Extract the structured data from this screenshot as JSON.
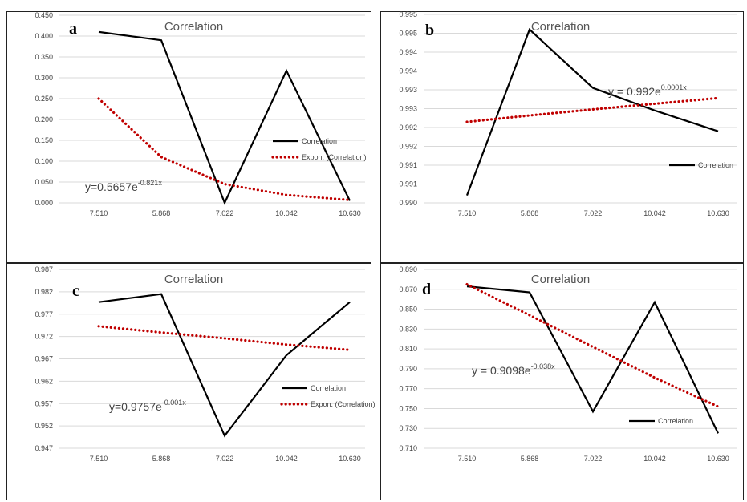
{
  "chart_data": [
    {
      "type": "line",
      "panel_label": "a",
      "title": "Correlation",
      "categories": [
        "7.510",
        "5.868",
        "7.022",
        "10.042",
        "10.630"
      ],
      "y_ticks": [
        "0.000",
        "0.050",
        "0.100",
        "0.150",
        "0.200",
        "0.250",
        "0.300",
        "0.350",
        "0.400",
        "0.450"
      ],
      "ylim": [
        0,
        0.45
      ],
      "series": [
        {
          "name": "Correlation",
          "values": [
            0.41,
            0.39,
            0.0,
            0.317,
            0.005
          ],
          "color": "#000000",
          "style": "solid"
        },
        {
          "name": "Expon. (Correlation)",
          "values": [
            0.25,
            0.11,
            0.045,
            0.019,
            0.007
          ],
          "color": "#c00000",
          "style": "dotted"
        }
      ],
      "equation": {
        "base": "y=0.5657e",
        "exp": "-0.821x"
      },
      "legend": "right",
      "grid": "horizontal"
    },
    {
      "type": "line",
      "panel_label": "b",
      "title": "Correlation",
      "categories": [
        "7.510",
        "5.868",
        "7.022",
        "10.042",
        "10.630"
      ],
      "y_ticks": [
        "0.990",
        "0.991",
        "0.991",
        "0.992",
        "0.992",
        "0.993",
        "0.993",
        "0.994",
        "0.994",
        "0.995",
        "0.995"
      ],
      "ylim": [
        0.99,
        0.995
      ],
      "series": [
        {
          "name": "Correlation",
          "values": [
            0.9902,
            0.9946,
            0.99305,
            0.99245,
            0.9919
          ],
          "color": "#000000",
          "style": "solid"
        },
        {
          "name": "",
          "values": [
            0.99215,
            0.99232,
            0.99248,
            0.99263,
            0.99278
          ],
          "color": "#c00000",
          "style": "dotted"
        }
      ],
      "equation": {
        "base": "y = 0.992e",
        "exp": "0.0001x"
      },
      "legend": "right",
      "grid": "horizontal"
    },
    {
      "type": "line",
      "panel_label": "c",
      "title": "Correlation",
      "categories": [
        "7.510",
        "5.868",
        "7.022",
        "10.042",
        "10.630"
      ],
      "y_ticks": [
        "0.947",
        "0.952",
        "0.957",
        "0.962",
        "0.967",
        "0.972",
        "0.977",
        "0.982",
        "0.987"
      ],
      "ylim": [
        0.947,
        0.987
      ],
      "series": [
        {
          "name": "Correlation",
          "values": [
            0.9797,
            0.9815,
            0.9498,
            0.9678,
            0.9797
          ],
          "color": "#000000",
          "style": "solid"
        },
        {
          "name": "Expon. (Correlation)",
          "values": [
            0.9743,
            0.9729,
            0.9716,
            0.9702,
            0.969
          ],
          "color": "#c00000",
          "style": "dotted"
        }
      ],
      "equation": {
        "base": "y=0.9757e",
        "exp": "-0.001x"
      },
      "legend": "right",
      "grid": "horizontal"
    },
    {
      "type": "line",
      "panel_label": "d",
      "title": "Correlation",
      "categories": [
        "7.510",
        "5.868",
        "7.022",
        "10.042",
        "10.630"
      ],
      "y_ticks": [
        "0.710",
        "0.730",
        "0.750",
        "0.770",
        "0.790",
        "0.810",
        "0.830",
        "0.850",
        "0.870",
        "0.890"
      ],
      "ylim": [
        0.71,
        0.89
      ],
      "series": [
        {
          "name": "Correlation",
          "values": [
            0.873,
            0.867,
            0.747,
            0.857,
            0.725
          ],
          "color": "#000000",
          "style": "solid"
        },
        {
          "name": "",
          "values": [
            0.875,
            0.844,
            0.812,
            0.781,
            0.752
          ],
          "color": "#c00000",
          "style": "dotted"
        }
      ],
      "equation": {
        "base": "y = 0.9098e",
        "exp": "-0.038x"
      },
      "legend": "right",
      "grid": "horizontal"
    }
  ]
}
